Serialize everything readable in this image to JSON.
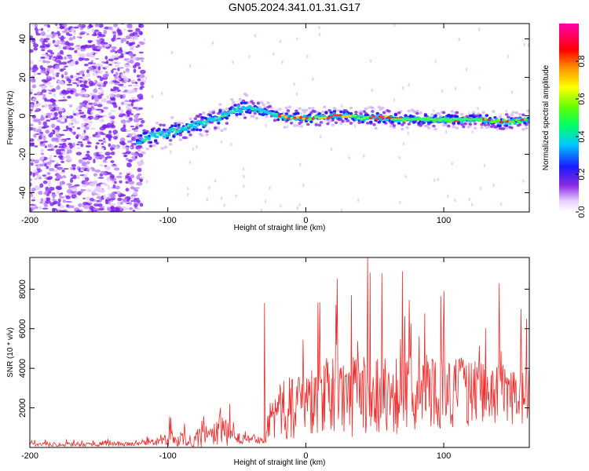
{
  "title": "GN05.2024.341.01.31.G17",
  "chart_data": [
    {
      "type": "heatmap",
      "xlabel": "Height of straight line (km)",
      "ylabel": "Frequency (Hz)",
      "xlim": [
        -200,
        162
      ],
      "ylim": [
        -50,
        48
      ],
      "x_ticks": [
        -200,
        -100,
        0,
        100
      ],
      "y_ticks": [
        -40,
        -20,
        0,
        20,
        40
      ],
      "colorbar": {
        "label": "Normalized spectral amplitude",
        "range": [
          0,
          1
        ],
        "ticks": [
          0.0,
          0.2,
          0.4,
          0.6,
          0.8
        ]
      },
      "ridge": {
        "x": [
          -120,
          -110,
          -100,
          -90,
          -80,
          -70,
          -60,
          -50,
          -45,
          -40,
          -30,
          -20,
          -10,
          0,
          10,
          20,
          30,
          40,
          50,
          60,
          70,
          80,
          90,
          100,
          110,
          120,
          130,
          140,
          150,
          160
        ],
        "y": [
          -13,
          -10,
          -9,
          -7,
          -5,
          -3,
          0,
          3,
          4,
          4,
          2,
          0,
          -1,
          -1,
          -1,
          0,
          0,
          -1,
          -1,
          -1,
          -2,
          -2,
          -2,
          -2,
          -2,
          -2,
          -2,
          -3,
          -3,
          -2
        ]
      },
      "grid": false
    },
    {
      "type": "line",
      "xlabel": "Height of straight line (km)",
      "ylabel": "SNR (10 * v/v)",
      "xlim": [
        -200,
        162
      ],
      "ylim": [
        0,
        9600
      ],
      "x_ticks": [
        -200,
        -100,
        0,
        100
      ],
      "y_ticks": [
        2000,
        4000,
        6000,
        8000
      ],
      "color": "#ee2b2b",
      "series_envelope": {
        "x": [
          -200,
          -120,
          -105,
          -100,
          -95,
          -90,
          -85,
          -80,
          -75,
          -70,
          -65,
          -60,
          -55,
          -50,
          -45,
          -40,
          -35,
          -30,
          -25,
          -20,
          -10,
          0,
          10,
          20,
          30,
          40,
          50,
          60,
          70,
          80,
          90,
          100,
          110,
          120,
          130,
          140,
          150,
          162
        ],
        "base": [
          150,
          180,
          300,
          400,
          450,
          450,
          380,
          400,
          500,
          650,
          700,
          750,
          600,
          450,
          450,
          450,
          450,
          500,
          1600,
          1800,
          2000,
          2300,
          2500,
          2600,
          2700,
          2700,
          2700,
          2700,
          2700,
          2800,
          2800,
          2800,
          2800,
          2800,
          2800,
          2800,
          2600,
          2500
        ],
        "amp": [
          200,
          250,
          400,
          800,
          900,
          800,
          700,
          900,
          1100,
          1400,
          1800,
          1800,
          1000,
          600,
          500,
          500,
          500,
          700,
          2500,
          3000,
          3200,
          3400,
          3800,
          4200,
          4400,
          4500,
          4300,
          4300,
          4000,
          3800,
          3700,
          3700,
          3600,
          3400,
          3300,
          3200,
          3000,
          3000
        ]
      },
      "peaks": [
        {
          "x": -30,
          "y": 7300
        },
        {
          "x": -98,
          "y": 1500
        },
        {
          "x": -55,
          "y": 2200
        },
        {
          "x": 22,
          "y": 7200
        },
        {
          "x": 45,
          "y": 9600
        },
        {
          "x": 55,
          "y": 8800
        },
        {
          "x": 70,
          "y": 8900
        },
        {
          "x": 100,
          "y": 7900
        },
        {
          "x": 140,
          "y": 8300
        },
        {
          "x": 156,
          "y": 7000
        },
        {
          "x": 160,
          "y": 6500
        }
      ],
      "grid": false
    }
  ]
}
